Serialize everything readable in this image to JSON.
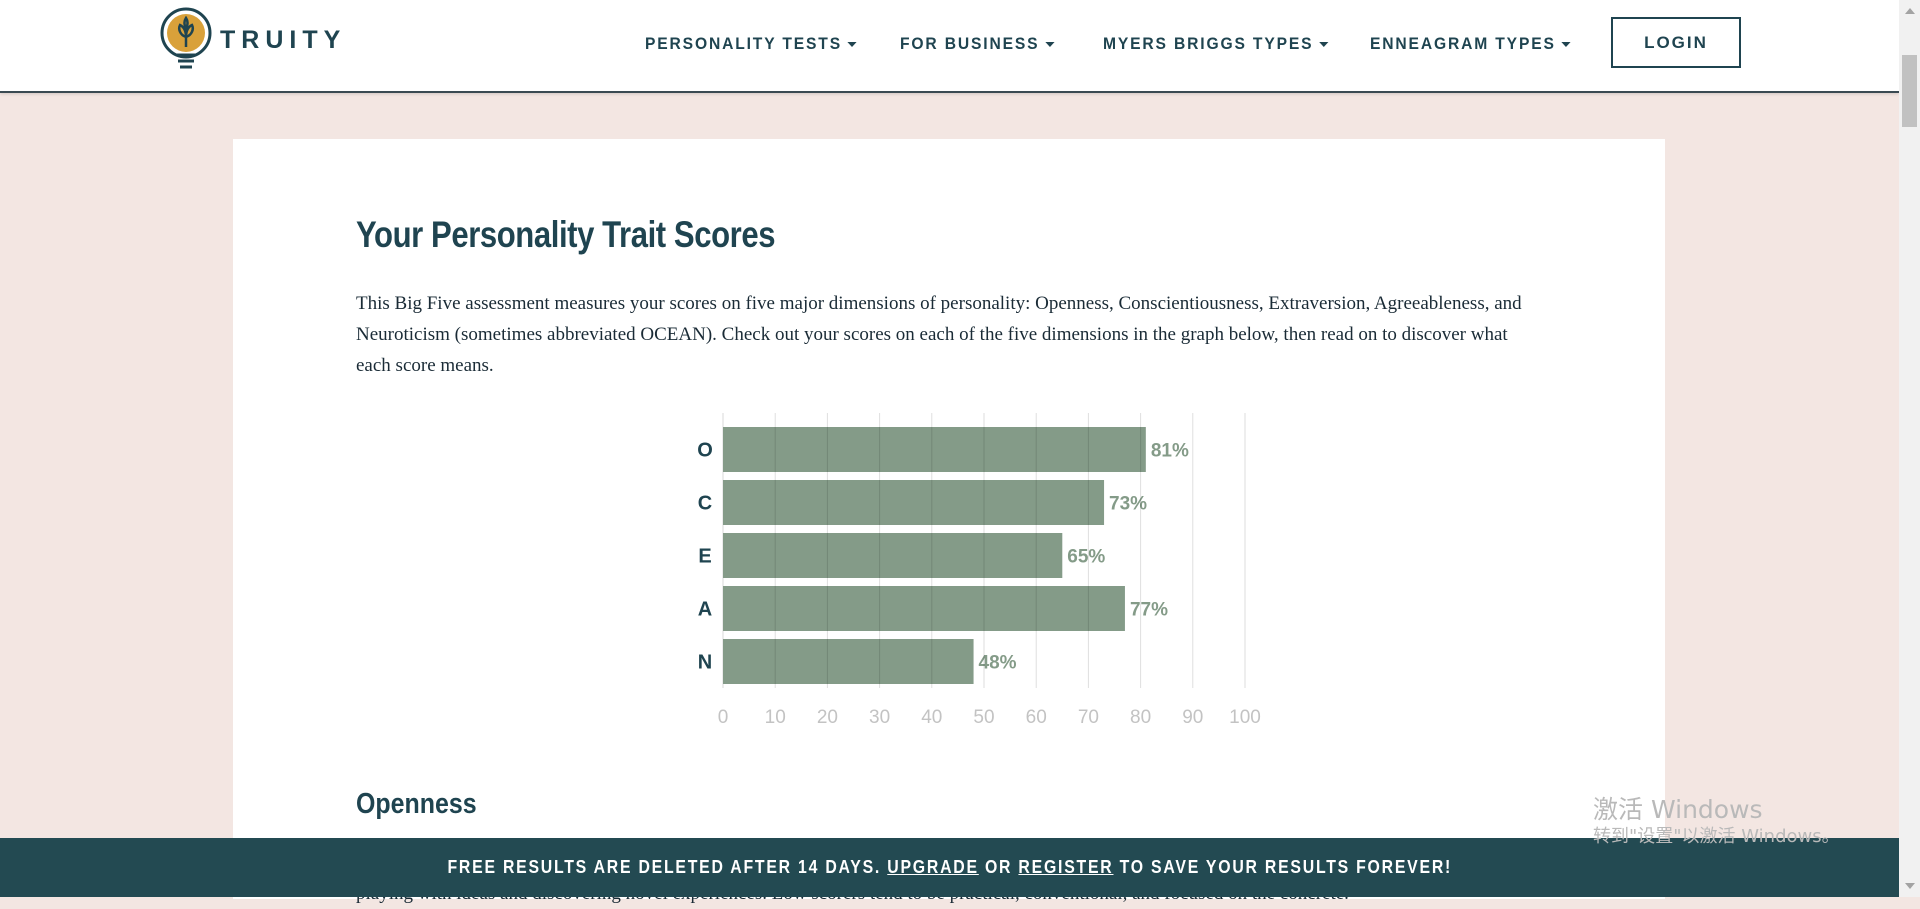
{
  "header": {
    "logo_text": "TRUITY",
    "nav": [
      {
        "label": "PERSONALITY TESTS"
      },
      {
        "label": "FOR BUSINESS"
      },
      {
        "label": "MYERS BRIGGS TYPES"
      },
      {
        "label": "ENNEAGRAM TYPES"
      }
    ],
    "login_label": "LOGIN"
  },
  "main": {
    "title": "Your Personality Trait Scores",
    "intro": "This Big Five assessment measures your scores on five major dimensions of personality: Openness, Conscientiousness, Extraversion, Agreeableness, and Neuroticism (sometimes abbreviated OCEAN). Check out your scores on each of the five dimensions in the graph below, then read on to discover what each score means.",
    "section_heading": "Openness",
    "section_text": "Openness describes a person's tendency to think in abstract, complex ways. High scorers tend to be creative, adventurous, and intellectual. They enjoy playing with ideas and discovering novel experiences. Low scorers tend to be practical, conventional, and focused on the concrete."
  },
  "chart_data": {
    "type": "bar",
    "orientation": "horizontal",
    "categories": [
      "O",
      "C",
      "E",
      "A",
      "N"
    ],
    "values": [
      81,
      73,
      65,
      77,
      48
    ],
    "value_labels": [
      "81%",
      "73%",
      "65%",
      "77%",
      "48%"
    ],
    "xticks": [
      "0",
      "10",
      "20",
      "30",
      "40",
      "50",
      "60",
      "70",
      "80",
      "90",
      "100"
    ],
    "xlim": [
      0,
      100
    ],
    "grid": true,
    "bar_color": "#849b88",
    "label_color": "#849b88",
    "tick_color": "#c3c3c3"
  },
  "banner": {
    "text_before": "FREE RESULTS ARE DELETED AFTER 14 DAYS.",
    "upgrade": "UPGRADE",
    "or": "OR",
    "register": "REGISTER",
    "text_after": "TO SAVE YOUR RESULTS FOREVER!"
  },
  "watermark": {
    "line1": "激活 Windows",
    "line2": "转到\"设置\"以激活 Windows。"
  },
  "colors": {
    "brand": "#1f4450",
    "page_bg": "#f3e6e2",
    "banner_bg": "#234a52"
  }
}
